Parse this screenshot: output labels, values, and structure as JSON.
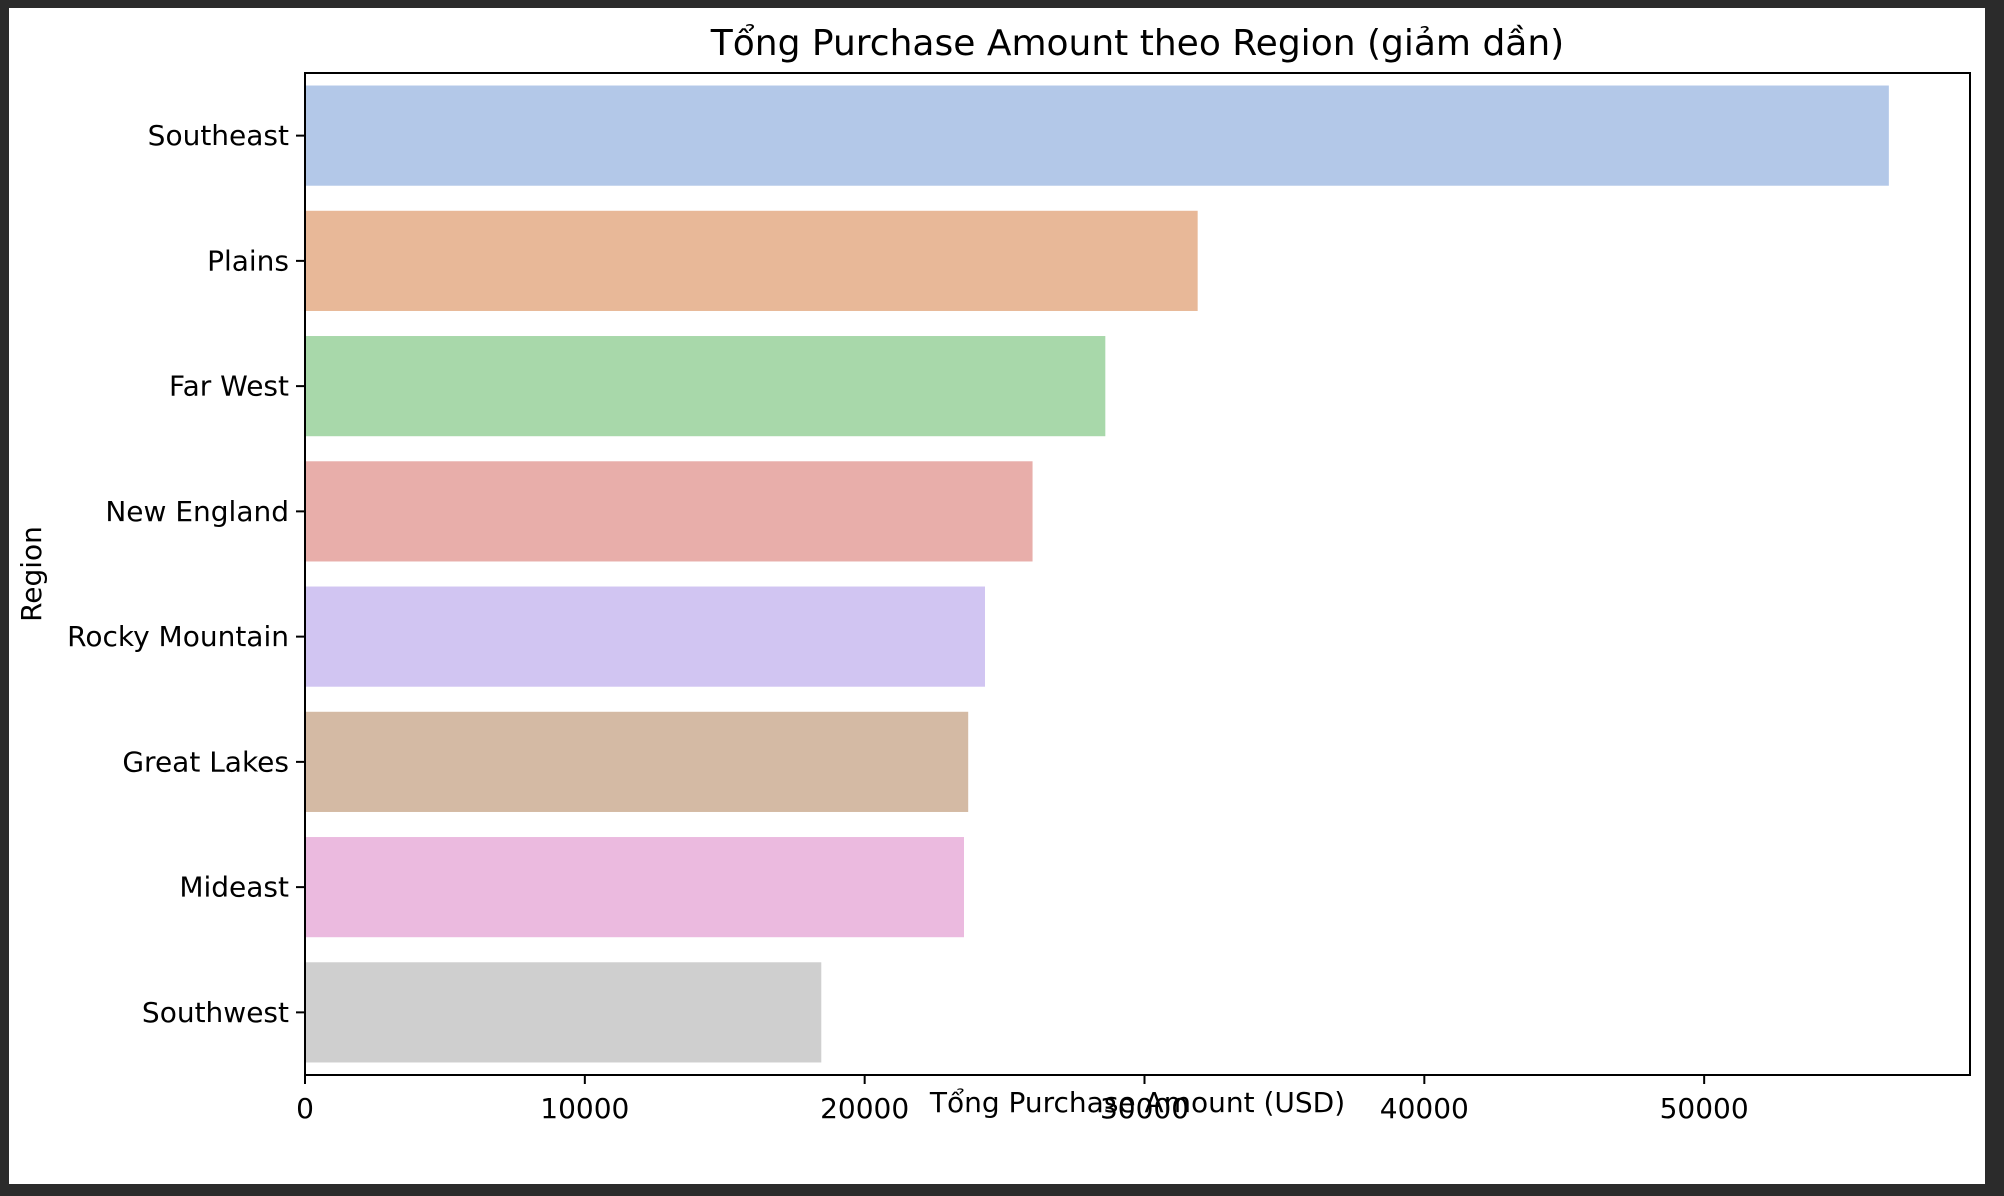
{
  "chart_data": {
    "type": "bar",
    "orientation": "horizontal",
    "title": "Tổng Purchase Amount theo Region (giảm dần)",
    "xlabel": "Tổng Purchase Amount (USD)",
    "ylabel": "Region",
    "categories": [
      "Southeast",
      "Plains",
      "Far West",
      "New England",
      "Rocky Mountain",
      "Great Lakes",
      "Mideast",
      "Southwest"
    ],
    "values": [
      56600,
      31900,
      28600,
      26000,
      24300,
      23700,
      23550,
      18450
    ],
    "colors": [
      "#b3c8e8",
      "#e8b898",
      "#a8d8aa",
      "#e8aeaa",
      "#d1c5f2",
      "#d4baa4",
      "#ebbadf",
      "#cfcfcf"
    ],
    "xlim": [
      0,
      59500
    ],
    "xticks": [
      0,
      10000,
      20000,
      30000,
      40000,
      50000
    ],
    "grid": false,
    "legend": "none"
  }
}
